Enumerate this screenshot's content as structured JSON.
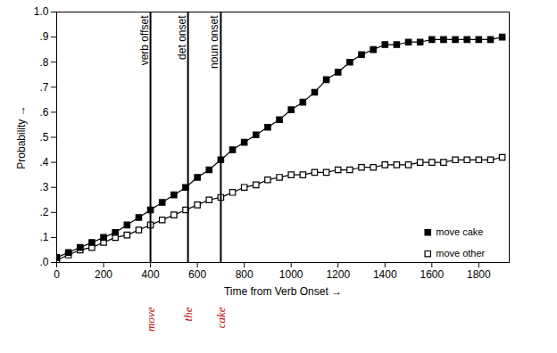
{
  "chart_data": {
    "type": "line",
    "x_label": "Time from Verb Onset",
    "y_label": "Probability",
    "x": [
      0,
      50,
      100,
      150,
      200,
      250,
      300,
      350,
      400,
      450,
      500,
      550,
      600,
      650,
      700,
      750,
      800,
      850,
      900,
      950,
      1000,
      1050,
      1100,
      1150,
      1200,
      1250,
      1300,
      1350,
      1400,
      1450,
      1500,
      1550,
      1600,
      1650,
      1700,
      1750,
      1800,
      1850,
      1900
    ],
    "series": [
      {
        "name": "move cake",
        "color": "#000000",
        "marker": "square",
        "values": [
          0.02,
          0.04,
          0.06,
          0.08,
          0.1,
          0.12,
          0.15,
          0.18,
          0.21,
          0.24,
          0.27,
          0.3,
          0.34,
          0.37,
          0.41,
          0.45,
          0.48,
          0.51,
          0.54,
          0.57,
          0.61,
          0.64,
          0.68,
          0.73,
          0.76,
          0.8,
          0.83,
          0.85,
          0.87,
          0.87,
          0.88,
          0.88,
          0.89,
          0.89,
          0.89,
          0.89,
          0.89,
          0.89,
          0.9
        ]
      },
      {
        "name": "move other",
        "color": "#000000",
        "marker": "square_open",
        "values": [
          0.01,
          0.03,
          0.05,
          0.06,
          0.08,
          0.1,
          0.11,
          0.13,
          0.15,
          0.17,
          0.19,
          0.21,
          0.23,
          0.25,
          0.26,
          0.28,
          0.3,
          0.31,
          0.33,
          0.34,
          0.35,
          0.35,
          0.36,
          0.36,
          0.37,
          0.37,
          0.38,
          0.38,
          0.39,
          0.39,
          0.39,
          0.4,
          0.4,
          0.4,
          0.41,
          0.41,
          0.41,
          0.41,
          0.42
        ]
      }
    ],
    "xlim": [
      0,
      1930
    ],
    "xticks": [
      0,
      200,
      400,
      600,
      800,
      1000,
      1200,
      1400,
      1600,
      1800
    ],
    "ylim": [
      0,
      1.0
    ],
    "yticks": [
      {
        "value": 0,
        "label": ".0"
      },
      {
        "value": 0.1,
        "label": ".1"
      },
      {
        "value": 0.2,
        "label": ".2"
      },
      {
        "value": 0.3,
        "label": ".3"
      },
      {
        "value": 0.4,
        "label": ".4"
      },
      {
        "value": 0.5,
        "label": ".5"
      },
      {
        "value": 0.6,
        "label": ".6"
      },
      {
        "value": 0.7,
        "label": ".7"
      },
      {
        "value": 0.8,
        "label": ".8"
      },
      {
        "value": 0.9,
        "label": ".9"
      },
      {
        "value": 1.0,
        "label": "1.0"
      }
    ],
    "annotations": [
      {
        "type": "line",
        "x": 400,
        "text": "verb offset"
      },
      {
        "type": "line",
        "x": 560,
        "text": "det onset"
      },
      {
        "type": "line",
        "x": 700,
        "text": "noun onset"
      },
      {
        "type": "word",
        "x": 400,
        "text": "move",
        "color": "#c00000"
      },
      {
        "type": "word",
        "x": 560,
        "text": "the",
        "color": "#c00000"
      },
      {
        "type": "word",
        "x": 700,
        "text": "cake",
        "color": "#c00000"
      }
    ],
    "grid": false,
    "legend": "bottom-right"
  }
}
